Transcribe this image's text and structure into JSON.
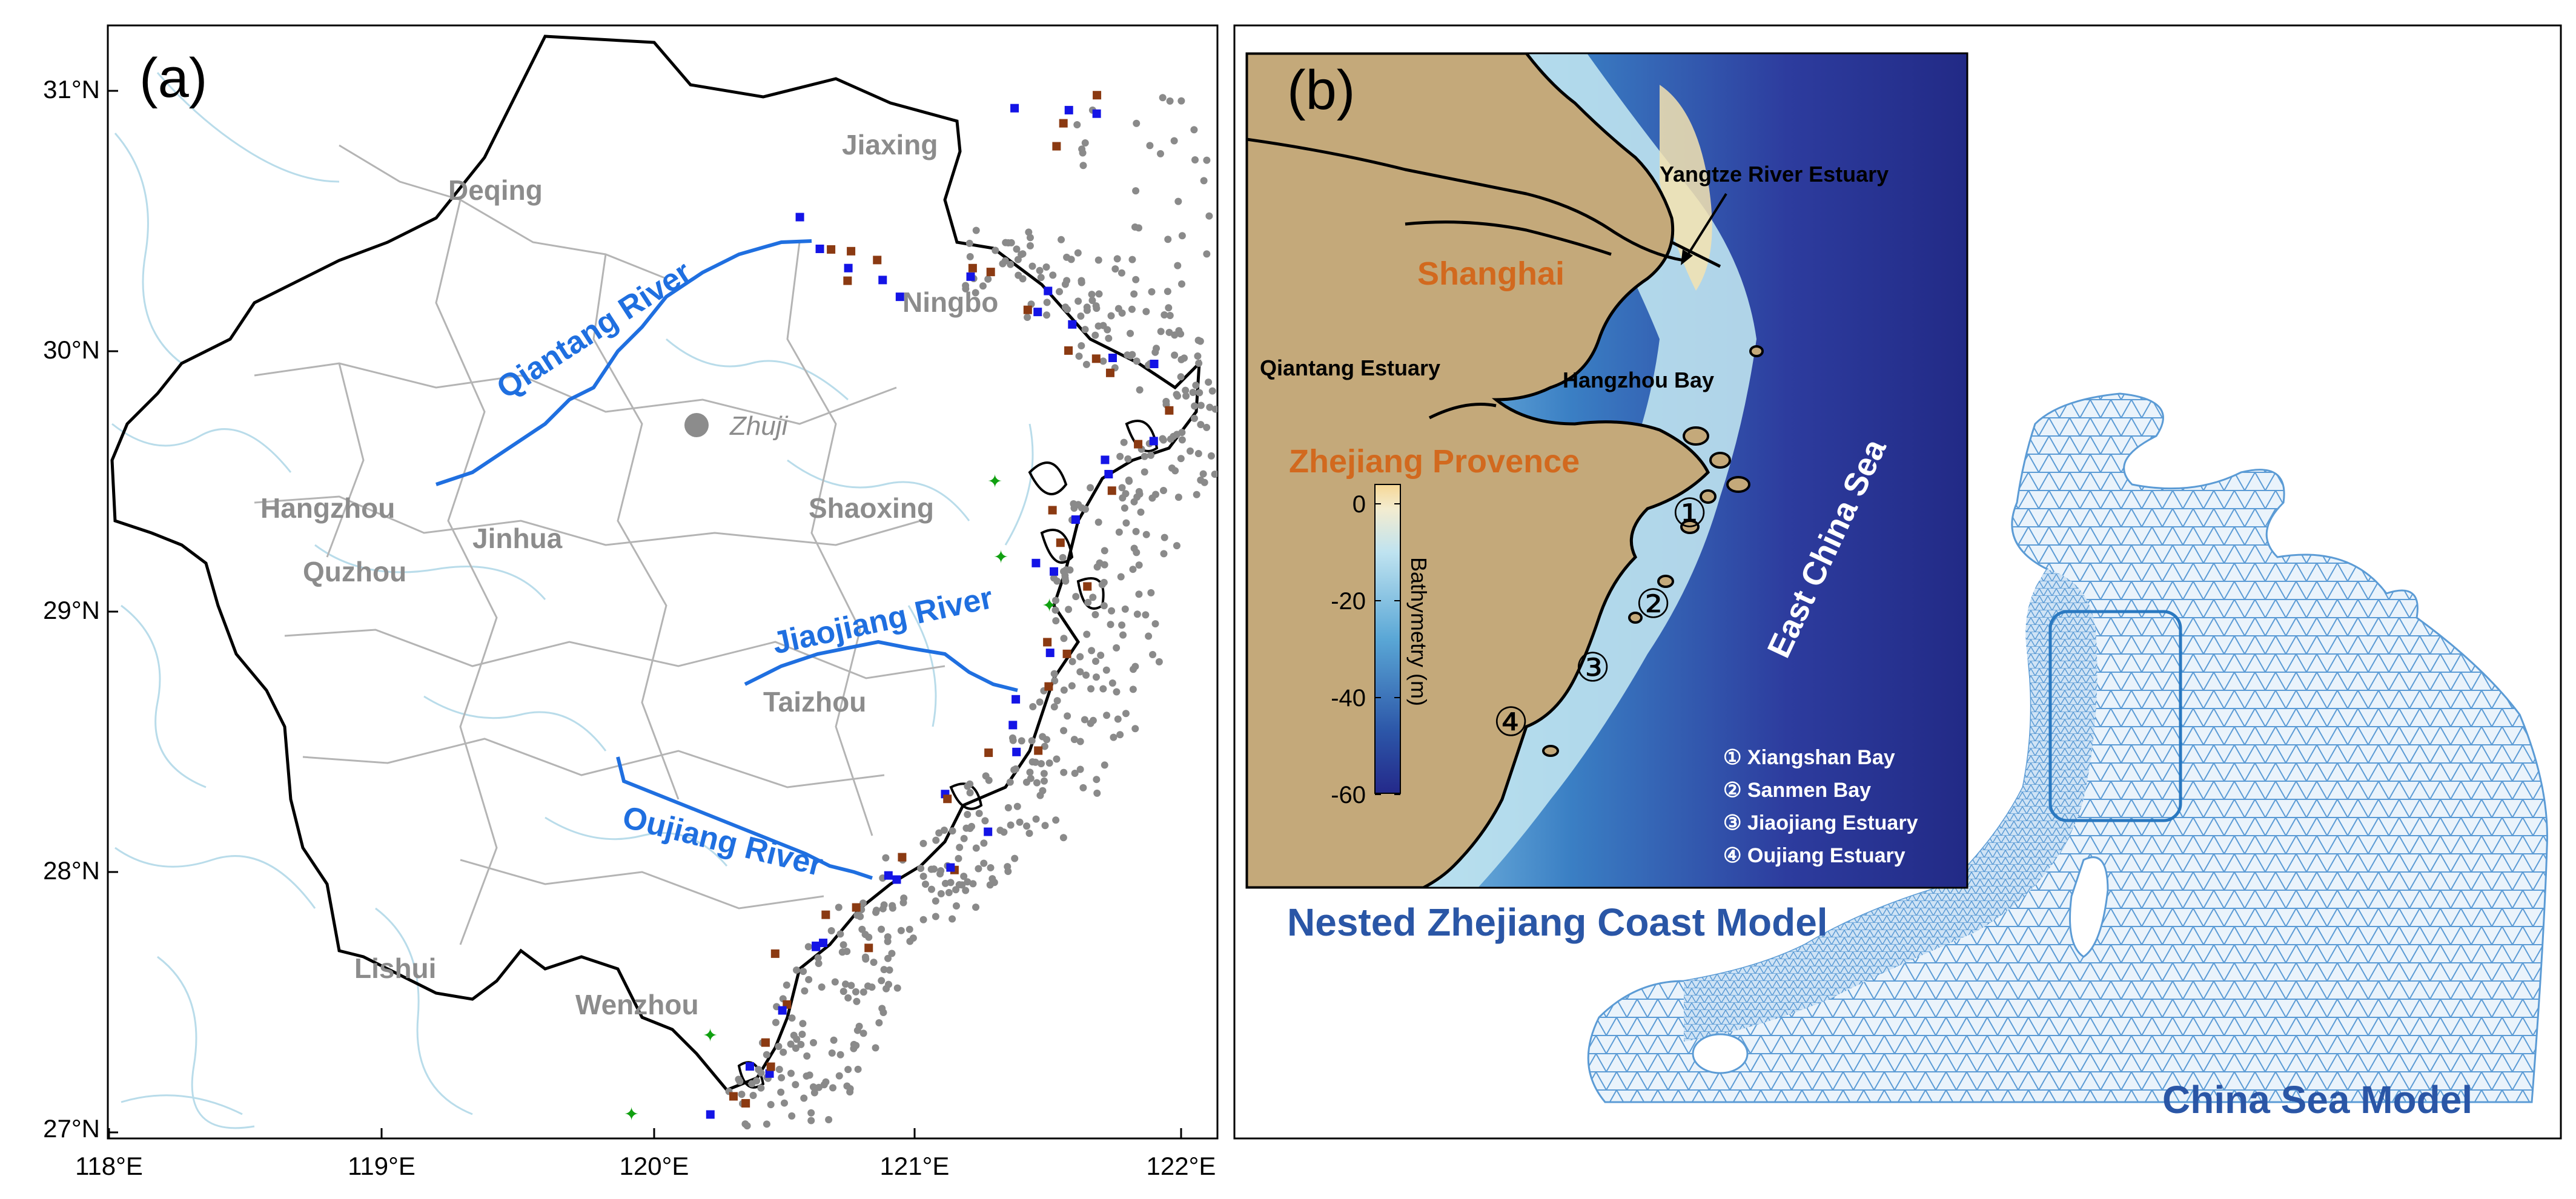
{
  "panel_a": {
    "label": "(a)",
    "lat_ticks": [
      "31°N",
      "30°N",
      "29°N",
      "28°N",
      "27°N"
    ],
    "lon_ticks": [
      "118°E",
      "119°E",
      "120°E",
      "121°E",
      "122°E"
    ],
    "rivers": [
      "Qiantang River",
      "Jiaojiang River",
      "Oujiang River"
    ],
    "cities": [
      "Jiaxing",
      "Deqing",
      "Ningbo",
      "Hangzhou",
      "Jinhua",
      "Shaoxing",
      "Quzhou",
      "Taizhou",
      "Lishui",
      "Wenzhou"
    ],
    "zhuji": "Zhuji",
    "colors": {
      "river": "#1f6fe0",
      "boundary": "#000000",
      "city": "#8c8c8c",
      "stream": "#b9dcea",
      "county": "#b4b4b4",
      "station_red": "#8b3a12",
      "station_blue": "#1414e6",
      "station_green": "#10a010",
      "point_gray": "#8a8a8a"
    }
  },
  "panel_b": {
    "label": "(b)",
    "places": {
      "shanghai": "Shanghai",
      "zhejiang": "Zhejiang Provence",
      "yangtze": "Yangtze River Estuary",
      "qiantang": "Qiantang Estuary",
      "hangzhou_bay": "Hangzhou Bay",
      "east_china_sea": "East China Sea"
    },
    "colorbar": {
      "label": "Bathymetry (m)",
      "ticks": [
        "0",
        "-20",
        "-40",
        "-60"
      ]
    },
    "markers": [
      "①",
      "②",
      "③",
      "④"
    ],
    "legend": [
      "① Xiangshan Bay",
      "② Sanmen Bay",
      "③ Jiaojiang Estuary",
      "④ Oujiang Estuary"
    ],
    "nested_title": "Nested Zhejiang Coast Model",
    "china_title": "China Sea Model",
    "colors": {
      "land": "#c4a97a",
      "deep": "#232a8a",
      "mid": "#3f8fcb",
      "shallow": "#9fd6ee",
      "shoal": "#f5e3b0",
      "place": "#d2691e",
      "title": "#2a56a6",
      "mesh": "#5b9bd5"
    }
  }
}
